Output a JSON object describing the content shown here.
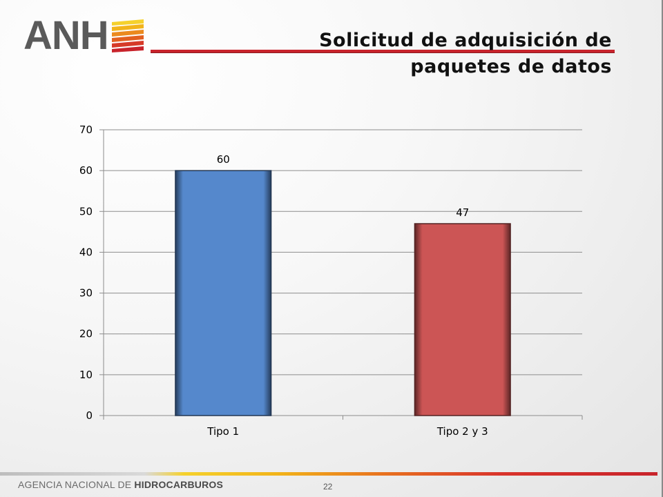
{
  "logo": {
    "text": "ANH"
  },
  "slide": {
    "title": "Solicitud de adquisición de paquetes de datos",
    "page_number": "22"
  },
  "footer": {
    "agency_regular": "AGENCIA NACIONAL DE ",
    "agency_bold": "HIDROCARBUROS"
  },
  "colors": {
    "tipo1": "#5588cc",
    "tipo2": "#cc5555",
    "title_rule": "#c8232b"
  },
  "chart_data": {
    "type": "bar",
    "categories": [
      "Tipo 1",
      "Tipo 2 y 3"
    ],
    "values": [
      60,
      47
    ],
    "data_labels": [
      "60",
      "47"
    ],
    "ylim": [
      0,
      70
    ],
    "yticks": [
      0,
      10,
      20,
      30,
      40,
      50,
      60,
      70
    ],
    "grid": true,
    "legend": "none"
  }
}
